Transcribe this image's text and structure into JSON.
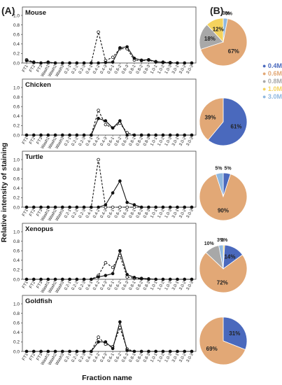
{
  "figure": {
    "panel_a_label": "(A)",
    "panel_b_label": "(B)",
    "ylabel": "Relative intensity of staining",
    "xlabel": "Fraction name"
  },
  "chart_data": {
    "line_charts": {
      "type": "line",
      "ylim": [
        0,
        1.0
      ],
      "yticks": [
        "0.0",
        "0.2",
        "0.4",
        "0.6",
        "0.8",
        "1.0"
      ],
      "categories": [
        "FT1",
        "FT2",
        "FT3",
        "Wash1",
        "Wash2",
        "Wash3",
        "0.2-1",
        "0.2-2",
        "0.2-3",
        "0.4-1",
        "0.4-2",
        "0.4-3",
        "0.6-1",
        "0.6-2",
        "0.6-3",
        "0.8-1",
        "0.8-2",
        "0.8-3",
        "1.0-1",
        "1.0-2",
        "1.0-3",
        "3.0-1",
        "3.0-2",
        "3.0-3"
      ],
      "panels": [
        {
          "title": "Mouse",
          "series": [
            {
              "style": "dashed-open-circle",
              "values": [
                0.07,
                0.02,
                0.0,
                0.0,
                0.0,
                0.0,
                0.0,
                0.0,
                0.0,
                0.0,
                0.65,
                0.05,
                0.12,
                0.3,
                0.3,
                0.06,
                0.05,
                0.06,
                0.02,
                0.02,
                0.01,
                0.0,
                0.0,
                0.0
              ]
            },
            {
              "style": "solid-filled-circle",
              "values": [
                0.05,
                0.01,
                0.0,
                0.02,
                0.0,
                0.0,
                0.0,
                0.0,
                0.0,
                0.0,
                0.0,
                0.01,
                0.02,
                0.32,
                0.34,
                0.1,
                0.06,
                0.07,
                0.03,
                0.01,
                0.0,
                0.0,
                0.0,
                0.0
              ]
            }
          ]
        },
        {
          "title": "Chicken",
          "series": [
            {
              "style": "dashed-open-circle",
              "values": [
                0.0,
                0.0,
                0.0,
                0.0,
                0.0,
                0.0,
                0.0,
                0.0,
                0.0,
                0.0,
                0.52,
                0.22,
                0.15,
                0.25,
                0.05,
                0.0,
                0.0,
                0.0,
                0.0,
                0.0,
                0.0,
                0.0,
                0.0,
                0.0
              ]
            },
            {
              "style": "solid-filled-circle",
              "values": [
                0.0,
                0.0,
                0.0,
                0.0,
                0.0,
                0.0,
                0.0,
                0.0,
                0.0,
                0.0,
                0.35,
                0.3,
                0.15,
                0.3,
                0.0,
                0.0,
                0.0,
                0.0,
                0.0,
                0.0,
                0.0,
                0.0,
                0.0,
                0.0
              ]
            }
          ]
        },
        {
          "title": "Turtle",
          "series": [
            {
              "style": "dashed-open-circle",
              "values": [
                0.0,
                0.0,
                0.0,
                0.0,
                0.0,
                0.0,
                0.0,
                0.0,
                0.0,
                0.0,
                1.0,
                0.0,
                0.0,
                0.0,
                0.0,
                0.0,
                0.0,
                0.0,
                0.0,
                0.0,
                0.0,
                0.0,
                0.0,
                0.0
              ]
            },
            {
              "style": "solid-filled-circle",
              "values": [
                0.0,
                0.0,
                0.0,
                0.0,
                0.0,
                0.0,
                0.0,
                0.0,
                0.0,
                0.0,
                0.0,
                0.05,
                0.3,
                0.55,
                0.1,
                0.05,
                0.0,
                0.0,
                0.0,
                0.0,
                0.0,
                0.0,
                0.0,
                0.0
              ]
            }
          ]
        },
        {
          "title": "Xenopus",
          "series": [
            {
              "style": "dashed-open-circle",
              "values": [
                0.0,
                0.0,
                0.0,
                0.0,
                0.0,
                0.0,
                0.0,
                0.0,
                0.0,
                0.0,
                0.08,
                0.35,
                0.25,
                0.5,
                0.05,
                0.02,
                0.01,
                0.0,
                0.0,
                0.0,
                0.0,
                0.0,
                0.0,
                0.0
              ]
            },
            {
              "style": "solid-filled-circle",
              "values": [
                0.0,
                0.0,
                0.0,
                0.0,
                0.0,
                0.0,
                0.0,
                0.0,
                0.0,
                0.0,
                0.05,
                0.08,
                0.12,
                0.6,
                0.1,
                0.04,
                0.02,
                0.01,
                0.0,
                0.0,
                0.0,
                0.0,
                0.0,
                0.0
              ]
            }
          ]
        },
        {
          "title": "Goldfish",
          "series": [
            {
              "style": "dashed-open-circle",
              "values": [
                0.0,
                0.0,
                0.0,
                0.0,
                0.0,
                0.0,
                0.0,
                0.0,
                0.0,
                0.0,
                0.3,
                0.15,
                0.1,
                0.5,
                0.05,
                0.0,
                0.0,
                0.0,
                0.0,
                0.0,
                0.0,
                0.0,
                0.0,
                0.0
              ]
            },
            {
              "style": "solid-filled-circle",
              "values": [
                0.0,
                0.0,
                0.0,
                0.0,
                0.0,
                0.0,
                0.0,
                0.0,
                0.0,
                0.0,
                0.2,
                0.2,
                0.06,
                0.62,
                0.02,
                0.0,
                0.0,
                0.0,
                0.0,
                0.0,
                0.0,
                0.0,
                0.0,
                0.0
              ]
            }
          ]
        }
      ]
    },
    "pie_charts": {
      "type": "pie",
      "legend": [
        {
          "label": "0.4M",
          "color": "#4a69bd"
        },
        {
          "label": "0.6M",
          "color": "#e2a876"
        },
        {
          "label": "0.8M",
          "color": "#a8a8a8"
        },
        {
          "label": "1.0M",
          "color": "#f4d35e"
        },
        {
          "label": "3.0M",
          "color": "#8fb8e0"
        }
      ],
      "panels": [
        {
          "title": "Mouse",
          "slices": [
            {
              "category": "3.0M",
              "value": 3,
              "label": "3%"
            },
            {
              "category": "0.4M",
              "value": 0,
              "label": "0%"
            },
            {
              "category": "0.6M",
              "value": 67,
              "label": "67%"
            },
            {
              "category": "0.8M",
              "value": 18,
              "label": "18%"
            },
            {
              "category": "1.0M",
              "value": 12,
              "label": "12%"
            }
          ]
        },
        {
          "title": "Chicken",
          "slices": [
            {
              "category": "0.4M",
              "value": 61,
              "label": "61%"
            },
            {
              "category": "0.6M",
              "value": 39,
              "label": "39%"
            }
          ]
        },
        {
          "title": "Turtle",
          "slices": [
            {
              "category": "0.4M",
              "value": 5,
              "label": "5%"
            },
            {
              "category": "0.6M",
              "value": 90,
              "label": "90%"
            },
            {
              "category": "3.0M",
              "value": 5,
              "label": "5%"
            }
          ]
        },
        {
          "title": "Xenopus",
          "slices": [
            {
              "category": "1.0M",
              "value": 1,
              "label": "1%"
            },
            {
              "category": "0.4M",
              "value": 14,
              "label": "14%"
            },
            {
              "category": "0.6M",
              "value": 72,
              "label": "72%"
            },
            {
              "category": "0.8M",
              "value": 10,
              "label": "10%"
            },
            {
              "category": "3.0M",
              "value": 3,
              "label": "3%"
            }
          ]
        },
        {
          "title": "Goldfish",
          "slices": [
            {
              "category": "0.4M",
              "value": 31,
              "label": "31%"
            },
            {
              "category": "0.6M",
              "value": 69,
              "label": "69%"
            }
          ]
        }
      ]
    }
  }
}
